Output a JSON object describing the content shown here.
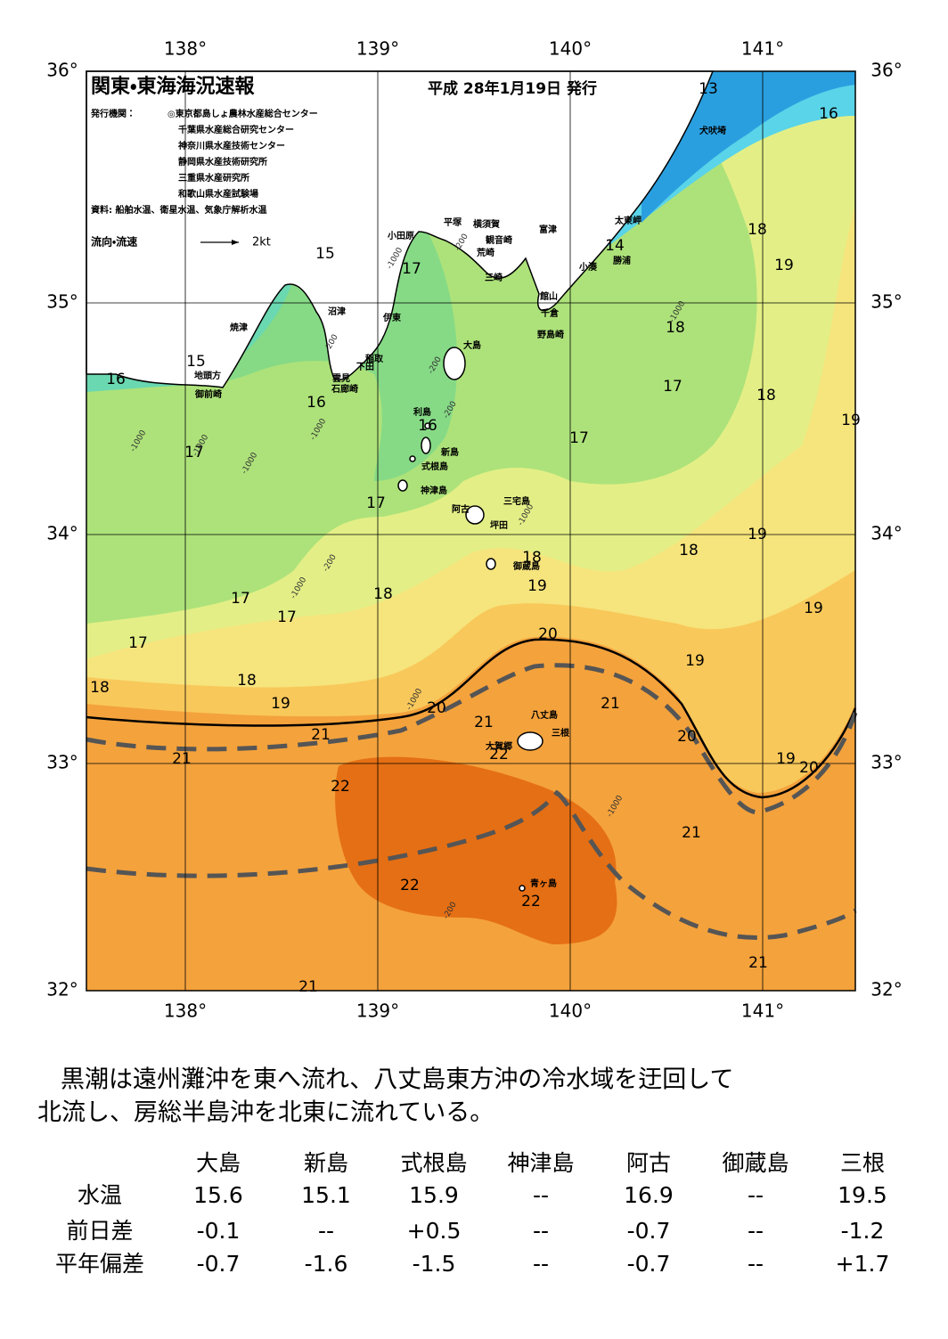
{
  "map": {
    "title": "関東・東海海況速報",
    "issued": "平成 28年1月19日 発行",
    "issuer_label": "発行機関：",
    "issuers": [
      "◎東京都島しょ農林水産総合センター",
      "千葉県水産総合研究センター",
      "神奈川県水産技術センター",
      "静岡県水産技術研究所",
      "三重県水産研究所",
      "和歌山県水産試験場"
    ],
    "source": "資料: 船舶水温、衛星水温、気象庁解析水温",
    "flow_label": "流向・流速",
    "flow_scale": "2kt",
    "lon_labels": [
      "138°",
      "139°",
      "140°",
      "141°"
    ],
    "lat_labels": [
      "36°",
      "35°",
      "34°",
      "33°",
      "32°"
    ],
    "places": [
      "犬吠埼",
      "太東岬",
      "勝浦",
      "小湊",
      "館山",
      "千倉",
      "野島崎",
      "富津",
      "横須賀",
      "観音崎",
      "荒崎",
      "三崎",
      "平塚",
      "小田原",
      "伊東",
      "沼津",
      "焼津",
      "稲取",
      "下田",
      "雲見",
      "石廊崎",
      "地頭方",
      "御前崎",
      "大島",
      "利島",
      "新島",
      "式根島",
      "神津島",
      "三宅島",
      "阿古",
      "坪田",
      "御蔵島",
      "八丈島",
      "三根",
      "大賀郷",
      "青ヶ島"
    ],
    "sst_labels": [
      13,
      16,
      15,
      14,
      17,
      18,
      19,
      18,
      15,
      16,
      17,
      18,
      16,
      16,
      17,
      17,
      19,
      17,
      19,
      18,
      18,
      19,
      18,
      17,
      17,
      19,
      17,
      20,
      19,
      18,
      18,
      19,
      20,
      21,
      21,
      21,
      20,
      22,
      21,
      19,
      20,
      22,
      21,
      22,
      22,
      21,
      21
    ],
    "depth_labels": [
      "-200",
      "-1000",
      "-200",
      "-1000",
      "-200",
      "-200",
      "-1000",
      "-1000",
      "-1000",
      "-200",
      "-1000",
      "-1000",
      "-1000",
      "-1000",
      "-1000",
      "-200"
    ]
  },
  "summary": [
    "黒潮は遠州灘沖を東へ流れ、八丈島東方沖の冷水域を迂回して",
    "北流し、房総半島沖を北東に流れている。"
  ],
  "table": {
    "columns": [
      "大島",
      "新島",
      "式根島",
      "神津島",
      "阿古",
      "御蔵島",
      "三根"
    ],
    "rows": [
      {
        "label": "水温",
        "cells": [
          "15.6",
          "15.1",
          "15.9",
          "--",
          "16.9",
          "--",
          "19.5"
        ]
      },
      {
        "label": "前日差",
        "cells": [
          "-0.1",
          "--",
          "+0.5",
          "--",
          "-0.7",
          "--",
          "-1.2"
        ]
      },
      {
        "label": "平年偏差",
        "cells": [
          "-0.7",
          "-1.6",
          "-1.5",
          "--",
          "-0.7",
          "--",
          "+1.7"
        ]
      }
    ]
  }
}
